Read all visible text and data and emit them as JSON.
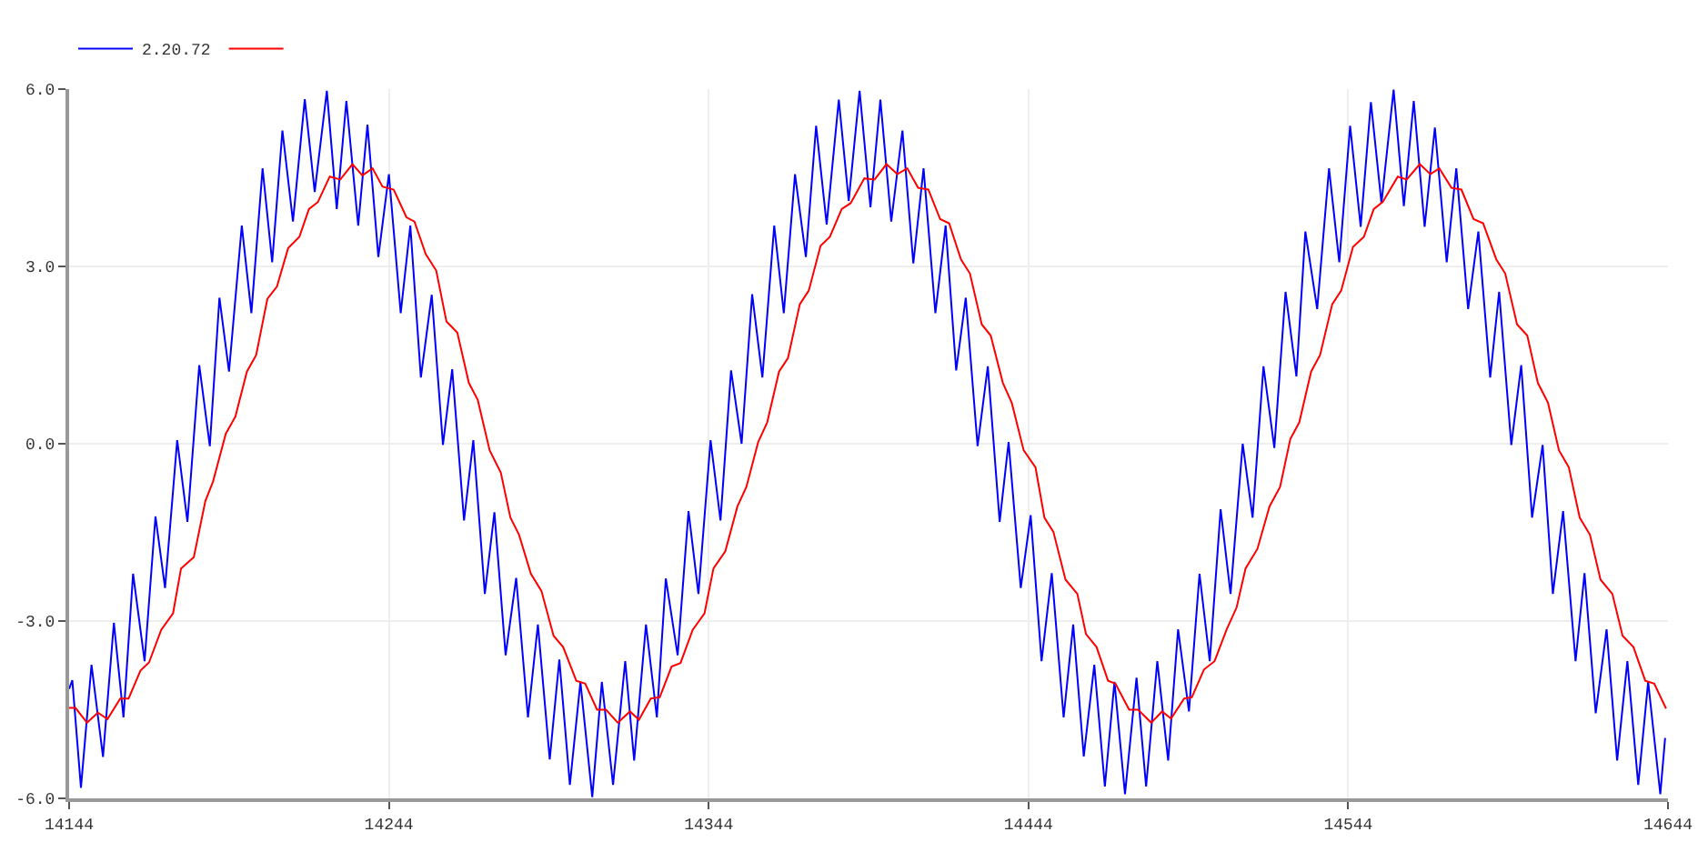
{
  "chart_data": {
    "type": "line",
    "legend": "top left",
    "grid": true,
    "marker": "none",
    "line_style": "solid",
    "xlim": [
      14144,
      14644
    ],
    "xticks": [
      14144,
      14244,
      14344,
      14444,
      14544,
      14644
    ],
    "ylim": [
      -6,
      6
    ],
    "yticks": [
      {
        "value": 6,
        "label": "6.0"
      },
      {
        "value": 3,
        "label": "3.0"
      },
      {
        "value": 0,
        "label": "0.0"
      },
      {
        "value": -3,
        "label": "-3.0"
      },
      {
        "value": -6,
        "label": "-6.0"
      }
    ],
    "series": [
      {
        "name": "2.20.72",
        "color": "#0000ff",
        "x": [
          14144,
          14145,
          14147.7,
          14151,
          14154.6,
          14158,
          14161,
          14164,
          14167.6,
          14171,
          14174,
          14177.8,
          14181,
          14184.7,
          14188,
          14191,
          14194,
          14198,
          14201,
          14204.5,
          14207.5,
          14210.7,
          14214,
          14217.7,
          14220.8,
          14224.6,
          14227.7,
          14230.7,
          14234.4,
          14237.3,
          14240.7,
          14244,
          14247.7,
          14250.7,
          14254,
          14257.4,
          14260.9,
          14263.8,
          14267.5,
          14270.4,
          14274,
          14277,
          14280.5,
          14283.8,
          14287.5,
          14290.6,
          14294.3,
          14297.3,
          14300.6,
          14303.9,
          14307.6,
          14310.6,
          14314.1,
          14317.9,
          14320.7,
          14324.4,
          14327.8,
          14330.6,
          14334.3,
          14337.7,
          14340.8,
          14344.6,
          14347.7,
          14351,
          14354.3,
          14357.6,
          14360.8,
          14364.5,
          14367.5,
          14371,
          14374.4,
          14377.6,
          14380.9,
          14384.7,
          14387.8,
          14391.2,
          14394.6,
          14397.7,
          14401.1,
          14404.6,
          14408,
          14411.2,
          14414.9,
          14418.1,
          14421.4,
          14424.4,
          14428.1,
          14431.3,
          14435,
          14437.8,
          14441.6,
          14444.7,
          14448.1,
          14451.3,
          14455,
          14458,
          14461.3,
          14464.6,
          14467.9,
          14470.9,
          14474.2,
          14477.8,
          14480.8,
          14484.3,
          14487.7,
          14490.8,
          14494.2,
          14497.5,
          14500.7,
          14504.1,
          14507.2,
          14511,
          14514.1,
          14517.5,
          14520.9,
          14524.4,
          14527.8,
          14530.6,
          14534.3,
          14538,
          14541.2,
          14544.6,
          14547.9,
          14551.1,
          14554.4,
          14558.2,
          14561.4,
          14564.5,
          14567.9,
          14571.1,
          14574.8,
          14577.8,
          14581.5,
          14584.7,
          14588.4,
          14591.2,
          14595,
          14598.1,
          14601.5,
          14604.8,
          14608,
          14611.2,
          14615.1,
          14617.9,
          14621.4,
          14624.8,
          14628.1,
          14631.3,
          14634.7,
          14637.8,
          14641.6,
          14643.1
        ],
        "values": [
          -4.15,
          -4.0,
          -5.82,
          -3.74,
          -5.3,
          -3.03,
          -4.63,
          -2.2,
          -3.68,
          -1.23,
          -2.44,
          0.06,
          -1.32,
          1.33,
          -0.04,
          2.47,
          1.22,
          3.69,
          2.21,
          4.66,
          3.07,
          5.3,
          3.76,
          5.83,
          4.26,
          5.97,
          3.97,
          5.8,
          3.69,
          5.4,
          3.16,
          4.56,
          2.21,
          3.69,
          1.12,
          2.52,
          -0.02,
          1.26,
          -1.3,
          0.06,
          -2.54,
          -1.16,
          -3.58,
          -2.27,
          -4.63,
          -3.06,
          -5.34,
          -3.65,
          -5.77,
          -4.03,
          -5.98,
          -4.03,
          -5.77,
          -3.68,
          -5.36,
          -3.06,
          -4.63,
          -2.28,
          -3.58,
          -1.14,
          -2.54,
          0.06,
          -1.3,
          1.24,
          0.0,
          2.53,
          1.12,
          3.69,
          2.21,
          4.56,
          3.16,
          5.38,
          3.71,
          5.82,
          4.11,
          5.97,
          4.0,
          5.82,
          3.76,
          5.3,
          3.05,
          4.66,
          2.21,
          3.69,
          1.24,
          2.47,
          -0.04,
          1.31,
          -1.32,
          0.03,
          -2.44,
          -1.21,
          -3.68,
          -2.19,
          -4.63,
          -3.06,
          -5.29,
          -3.74,
          -5.8,
          -4.03,
          -5.93,
          -3.96,
          -5.8,
          -3.68,
          -5.36,
          -3.14,
          -4.53,
          -2.2,
          -3.68,
          -1.11,
          -2.54,
          0.0,
          -1.25,
          1.31,
          -0.07,
          2.57,
          1.14,
          3.59,
          2.28,
          4.66,
          3.07,
          5.38,
          3.67,
          5.78,
          4.07,
          5.99,
          4.02,
          5.8,
          3.67,
          5.35,
          3.07,
          4.66,
          2.28,
          3.59,
          1.12,
          2.57,
          -0.02,
          1.33,
          -1.25,
          -0.02,
          -2.54,
          -1.14,
          -3.68,
          -2.19,
          -4.56,
          -3.14,
          -5.36,
          -3.68,
          -5.77,
          -4.03,
          -5.93,
          -4.98
        ]
      },
      {
        "color": "#ff0000",
        "x": [
          14144,
          14146,
          14149.6,
          14153,
          14156,
          14160,
          14162.6,
          14166.3,
          14169,
          14172.8,
          14176.5,
          14179,
          14183,
          14186.6,
          14189,
          14193,
          14196,
          14199.6,
          14202.5,
          14206,
          14209,
          14212.5,
          14216,
          14219,
          14221.8,
          14225.5,
          14228.8,
          14232.6,
          14235.7,
          14238.9,
          14242,
          14245.5,
          14249.5,
          14252,
          14255.5,
          14258.8,
          14262,
          14265.4,
          14269,
          14271.8,
          14275.5,
          14279,
          14282,
          14284.7,
          14288.4,
          14291.7,
          14295.5,
          14298.5,
          14302.6,
          14305.4,
          14309.1,
          14311.9,
          14315.6,
          14319.4,
          14322.2,
          14325.9,
          14328.7,
          14332.4,
          14335.2,
          14339,
          14342.7,
          14345.5,
          14349.2,
          14353,
          14355.8,
          14359.5,
          14362.3,
          14366,
          14368.8,
          14372.5,
          14375.3,
          14379,
          14381.9,
          14385.6,
          14388.4,
          14392.7,
          14395.9,
          14399.6,
          14403,
          14406.1,
          14409.5,
          14412.7,
          14416.4,
          14419.2,
          14422.9,
          14425.7,
          14429.4,
          14432.2,
          14436,
          14438.8,
          14442.5,
          14446.2,
          14449,
          14451.8,
          14455.6,
          14459.3,
          14462,
          14465.3,
          14468.9,
          14471.2,
          14475.5,
          14478.3,
          14482.4,
          14485.8,
          14488.6,
          14492.7,
          14495.1,
          14498.9,
          14502.2,
          14506,
          14509.1,
          14511.9,
          14515.6,
          14519.4,
          14522.7,
          14525.9,
          14528.7,
          14532.4,
          14535.2,
          14539,
          14541.8,
          14545.5,
          14548.9,
          14552,
          14554.8,
          14559.5,
          14562.3,
          14566.4,
          14569.7,
          14572.5,
          14576.3,
          14579.4,
          14583.2,
          14586.2,
          14590.3,
          14593.1,
          14596.8,
          14600,
          14603.3,
          14606.5,
          14609.9,
          14613,
          14616.4,
          14619.6,
          14622.9,
          14626.6,
          14629.8,
          14633.2,
          14636.9,
          14639.7,
          14643.4
        ],
        "values": [
          -4.47,
          -4.47,
          -4.72,
          -4.55,
          -4.66,
          -4.31,
          -4.31,
          -3.84,
          -3.7,
          -3.15,
          -2.87,
          -2.11,
          -1.92,
          -0.97,
          -0.64,
          0.17,
          0.46,
          1.22,
          1.5,
          2.45,
          2.66,
          3.31,
          3.5,
          3.97,
          4.09,
          4.52,
          4.47,
          4.73,
          4.54,
          4.66,
          4.35,
          4.3,
          3.83,
          3.76,
          3.21,
          2.93,
          2.07,
          1.88,
          1.03,
          0.74,
          -0.11,
          -0.49,
          -1.25,
          -1.54,
          -2.2,
          -2.49,
          -3.25,
          -3.44,
          -4.01,
          -4.06,
          -4.5,
          -4.5,
          -4.72,
          -4.53,
          -4.67,
          -4.31,
          -4.29,
          -3.77,
          -3.71,
          -3.15,
          -2.87,
          -2.11,
          -1.82,
          -1.06,
          -0.73,
          0.03,
          0.36,
          1.22,
          1.45,
          2.36,
          2.59,
          3.35,
          3.5,
          3.97,
          4.07,
          4.49,
          4.47,
          4.73,
          4.56,
          4.66,
          4.33,
          4.3,
          3.8,
          3.73,
          3.12,
          2.88,
          2.02,
          1.83,
          1.03,
          0.69,
          -0.11,
          -0.4,
          -1.25,
          -1.49,
          -2.3,
          -2.54,
          -3.22,
          -3.44,
          -4.01,
          -4.06,
          -4.5,
          -4.5,
          -4.72,
          -4.53,
          -4.65,
          -4.31,
          -4.29,
          -3.82,
          -3.68,
          -3.14,
          -2.77,
          -2.11,
          -1.78,
          -1.06,
          -0.73,
          0.08,
          0.36,
          1.22,
          1.5,
          2.36,
          2.59,
          3.33,
          3.5,
          3.97,
          4.09,
          4.52,
          4.47,
          4.73,
          4.56,
          4.66,
          4.33,
          4.3,
          3.8,
          3.73,
          3.12,
          2.88,
          2.02,
          1.83,
          1.03,
          0.69,
          -0.11,
          -0.4,
          -1.25,
          -1.54,
          -2.3,
          -2.54,
          -3.25,
          -3.44,
          -4.01,
          -4.06,
          -4.48
        ]
      }
    ]
  }
}
